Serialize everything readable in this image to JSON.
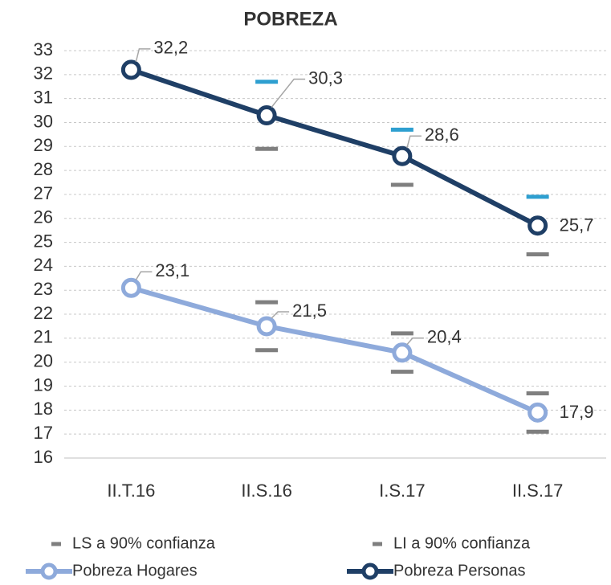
{
  "chart_data": {
    "type": "line",
    "title": "POBREZA",
    "categories": [
      "II.T.16",
      "II.S.16",
      "I.S.17",
      "II.S.17"
    ],
    "ylim": [
      16,
      33
    ],
    "yticks": [
      16,
      17,
      18,
      19,
      20,
      21,
      22,
      23,
      24,
      25,
      26,
      27,
      28,
      29,
      30,
      31,
      32,
      33
    ],
    "grid": true,
    "series": [
      {
        "name": "LS a 90% confianza",
        "style": "dash",
        "color": "#7f7f7f",
        "values": [
          null,
          22.5,
          21.2,
          18.7
        ]
      },
      {
        "name": "LI a 90% confianza",
        "style": "dash",
        "color": "#7f7f7f",
        "values": [
          null,
          20.5,
          19.6,
          17.1
        ]
      },
      {
        "style": "dash",
        "color": "#2e9fd0",
        "values": [
          null,
          31.7,
          29.7,
          26.9
        ]
      },
      {
        "style": "dash",
        "color": "#7f7f7f",
        "values": [
          null,
          28.9,
          27.4,
          24.5
        ]
      },
      {
        "name": "Pobreza Hogares",
        "style": "line",
        "color": "#8eaadb",
        "values": [
          23.1,
          21.5,
          20.4,
          17.9
        ],
        "value_labels": [
          "23,1",
          "21,5",
          "20,4",
          "17,9"
        ]
      },
      {
        "name": "Pobreza Personas",
        "style": "line",
        "color": "#1f3f66",
        "values": [
          32.2,
          30.3,
          28.6,
          25.7
        ],
        "value_labels": [
          "32,2",
          "30,3",
          "28,6",
          "25,7"
        ]
      }
    ]
  }
}
